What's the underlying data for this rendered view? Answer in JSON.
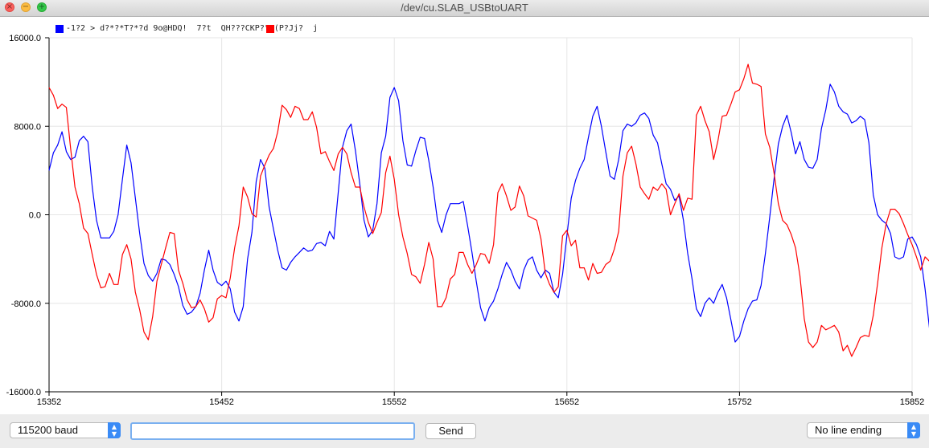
{
  "window": {
    "title": "/dev/cu.SLAB_USBtoUART"
  },
  "legend": {
    "text": "-1?2 > d?*?*T?*?d 9o@HDQ!  7?t  QH???CKP?\"A(P?Jj?  j",
    "colors": [
      "#0000ff",
      "#ff0000"
    ]
  },
  "toolbar": {
    "baud": "115200 baud",
    "send_label": "Send",
    "input_value": "",
    "line_ending": "No line ending"
  },
  "chart_data": {
    "type": "line",
    "title": "",
    "xlabel": "",
    "ylabel": "",
    "xlim": [
      15352,
      15852
    ],
    "ylim": [
      -16000,
      16000
    ],
    "x_ticks": [
      15352,
      15452,
      15552,
      15652,
      15752,
      15852
    ],
    "y_ticks": [
      16000,
      8000,
      0,
      -8000,
      -16000
    ],
    "y_tick_labels": [
      "16000.0",
      "8000.0",
      "0.0",
      "-8000.0",
      "-16000.0"
    ],
    "grid": true,
    "legend_position": "top-left",
    "x_start": 15352,
    "x_step": 2.5,
    "series": [
      {
        "color": "#0000ff",
        "values": [
          4000,
          5600,
          6300,
          7500,
          5700,
          5000,
          5200,
          6700,
          7100,
          6600,
          2500,
          -500,
          -2100,
          -2100,
          -2100,
          -1500,
          0,
          3200,
          6300,
          4700,
          1500,
          -1700,
          -4400,
          -5500,
          -6000,
          -5300,
          -4000,
          -4100,
          -4500,
          -5400,
          -6500,
          -8200,
          -9000,
          -8800,
          -8300,
          -7100,
          -5000,
          -3200,
          -5000,
          -6100,
          -6400,
          -6000,
          -6700,
          -8800,
          -9600,
          -8300,
          -4000,
          -1600,
          3000,
          5000,
          4200,
          700,
          -1300,
          -3200,
          -4800,
          -5000,
          -4300,
          -3800,
          -3400,
          -3000,
          -3300,
          -3200,
          -2600,
          -2500,
          -2800,
          -1500,
          -2200,
          2000,
          6100,
          7600,
          8200,
          5800,
          2800,
          -500,
          -2000,
          -1400,
          1000,
          5600,
          7100,
          10600,
          11500,
          10300,
          6700,
          4500,
          4400,
          5800,
          7000,
          6900,
          4900,
          2500,
          -500,
          -1600,
          0,
          1000,
          1000,
          1000,
          1200,
          -1000,
          -3400,
          -6000,
          -8400,
          -9600,
          -8400,
          -7800,
          -6700,
          -5400,
          -4300,
          -5000,
          -6000,
          -6700,
          -5000,
          -4100,
          -3800,
          -5000,
          -5700,
          -5000,
          -5300,
          -7000,
          -7500,
          -5400,
          -1900,
          1500,
          3100,
          4200,
          5000,
          7000,
          8900,
          9800,
          8000,
          5700,
          3500,
          3200,
          5000,
          7600,
          8200,
          8000,
          8300,
          9000,
          9200,
          8700,
          7200,
          6500,
          4600,
          2800,
          2300,
          1300,
          1700,
          -500,
          -3500,
          -5800,
          -8500,
          -9200,
          -8000,
          -7500,
          -8000,
          -7000,
          -6300,
          -7500,
          -9500,
          -11500,
          -11000,
          -9600,
          -8500,
          -7800,
          -7700,
          -6400,
          -3500,
          -200,
          3200,
          6400,
          8000,
          9000,
          7400,
          5500,
          6600,
          5000,
          4300,
          4200,
          5000,
          7800,
          9500,
          11800,
          11100,
          9800,
          9300,
          9100,
          8300,
          8500,
          8900,
          8600,
          6500,
          1800,
          0,
          -500,
          -800,
          -1700,
          -3800,
          -4000,
          -3800,
          -2200,
          -2000,
          -2700,
          -3800,
          -6700,
          -10200,
          -13100,
          -12800,
          -11500,
          -9500,
          -8400,
          -10400,
          -11100,
          -9000,
          -6600,
          -7000,
          -8000,
          -9500,
          -6500,
          -3000,
          -4400,
          -6700,
          -6300,
          -5000,
          -5800,
          -5800
        ]
      },
      {
        "color": "#ff0000",
        "values": [
          11500,
          10800,
          9600,
          10000,
          9700,
          6000,
          2500,
          1000,
          -1200,
          -1700,
          -3600,
          -5400,
          -6600,
          -6500,
          -5300,
          -6300,
          -6300,
          -3600,
          -2700,
          -4000,
          -7000,
          -8600,
          -10600,
          -11300,
          -9200,
          -6000,
          -4500,
          -3000,
          -1600,
          -1700,
          -5000,
          -6200,
          -7700,
          -8400,
          -8300,
          -7700,
          -8500,
          -9700,
          -9300,
          -7600,
          -7300,
          -7500,
          -5700,
          -3000,
          -1000,
          2500,
          1600,
          100,
          -200,
          3500,
          4500,
          5400,
          6000,
          7500,
          9900,
          9500,
          8800,
          9800,
          9600,
          8600,
          8600,
          9300,
          7900,
          5500,
          5700,
          4800,
          4000,
          5500,
          6100,
          5500,
          3800,
          2500,
          2500,
          700,
          -700,
          -1700,
          -700,
          200,
          3800,
          5300,
          3200,
          0,
          -2000,
          -3500,
          -5400,
          -5600,
          -6200,
          -4500,
          -2500,
          -4000,
          -8300,
          -8300,
          -7500,
          -5800,
          -5400,
          -3400,
          -3400,
          -4500,
          -5300,
          -4500,
          -3500,
          -3600,
          -4400,
          -2700,
          2000,
          2800,
          1700,
          400,
          700,
          2600,
          1700,
          -100,
          -300,
          -500,
          -2200,
          -5300,
          -6300,
          -7000,
          -6500,
          -1900,
          -1400,
          -2800,
          -2300,
          -4800,
          -4800,
          -5900,
          -4400,
          -5300,
          -5200,
          -4500,
          -4200,
          -3100,
          -1500,
          3500,
          5600,
          6200,
          4600,
          2500,
          1900,
          1400,
          2500,
          2200,
          2800,
          2300,
          0,
          1000,
          1900,
          400,
          1500,
          1400,
          9000,
          9800,
          8500,
          7500,
          5000,
          6700,
          8900,
          9000,
          10000,
          11100,
          11300,
          12300,
          13600,
          11900,
          11800,
          11600,
          7300,
          6100,
          3800,
          1000,
          -500,
          -900,
          -1800,
          -3000,
          -5500,
          -9400,
          -11500,
          -12000,
          -11500,
          -10000,
          -10400,
          -10200,
          -10000,
          -10600,
          -12300,
          -11800,
          -12800,
          -12000,
          -11100,
          -10900,
          -11000,
          -9100,
          -6200,
          -3000,
          -800,
          500,
          500,
          100,
          -800,
          -1800,
          -2700,
          -3800,
          -5000,
          -3800,
          -4200,
          -4000,
          -2900,
          -2200,
          -1400,
          700
        ]
      }
    ]
  }
}
